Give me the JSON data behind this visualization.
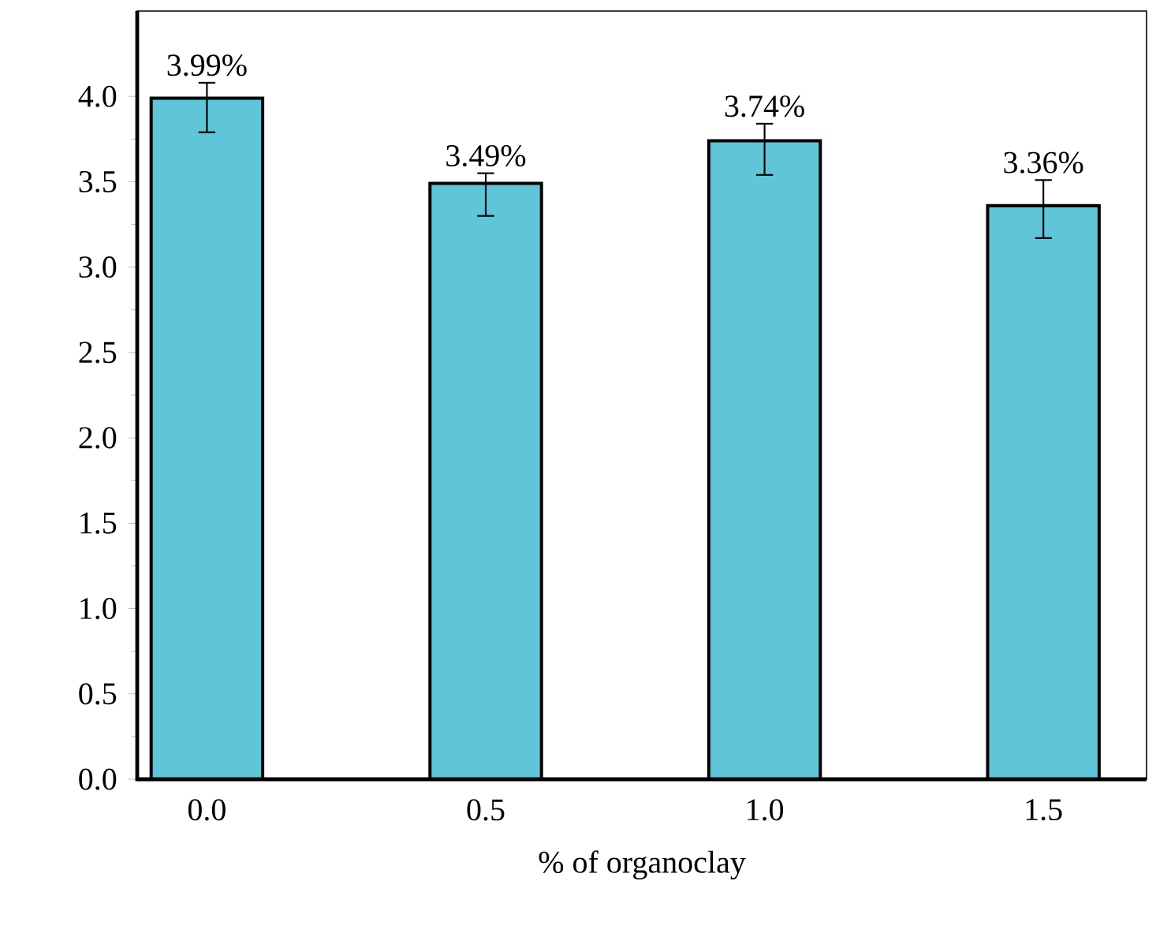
{
  "chart_data": {
    "type": "bar",
    "xlabel": "% of organoclay",
    "categories": [
      "0.0",
      "0.5",
      "1.0",
      "1.5"
    ],
    "values": [
      3.99,
      3.49,
      3.74,
      3.36
    ],
    "color": "#5ec6d8",
    "errors": [
      [
        3.79,
        4.08
      ],
      [
        3.3,
        3.55
      ],
      [
        3.54,
        3.84
      ],
      [
        3.17,
        3.51
      ]
    ],
    "value_labels": [
      "3.99%",
      "3.49%",
      "3.74%",
      "3.36%"
    ],
    "ylim": [
      0,
      4.5
    ],
    "yticks": [
      {
        "value": 0,
        "label": "0.0"
      },
      0.5,
      {
        "value": 1,
        "label": "1.0"
      },
      1.5,
      {
        "value": 2,
        "label": "2.0"
      },
      2.5,
      {
        "value": 3,
        "label": "3.0"
      },
      3.5,
      {
        "value": 4,
        "label": "4.0"
      }
    ],
    "grid": false
  }
}
